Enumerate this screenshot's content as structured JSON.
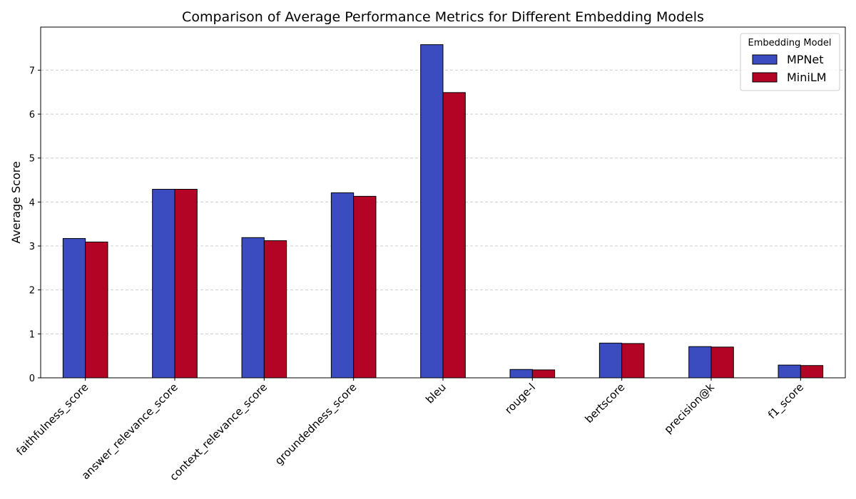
{
  "chart_data": {
    "type": "bar",
    "title": "Comparison of Average Performance Metrics for Different Embedding Models",
    "xlabel": "",
    "ylabel": "Average Score",
    "categories": [
      "faithfulness_score",
      "answer_relevance_score",
      "context_relevance_score",
      "groundedness_score",
      "bleu",
      "rouge-l",
      "bertscore",
      "precision@k",
      "f1_score"
    ],
    "series": [
      {
        "name": "MPNet",
        "color": "#3b4cc0",
        "values": [
          3.17,
          4.29,
          3.19,
          4.21,
          7.58,
          0.19,
          0.79,
          0.71,
          0.29
        ]
      },
      {
        "name": "MiniLM",
        "color": "#b40426",
        "values": [
          3.09,
          4.29,
          3.12,
          4.13,
          6.49,
          0.18,
          0.78,
          0.7,
          0.28
        ]
      }
    ],
    "ylim": [
      0,
      7.98
    ],
    "yticks": [
      0,
      1,
      2,
      3,
      4,
      5,
      6,
      7
    ],
    "grid": "y, dashed",
    "legend": {
      "title": "Embedding Model",
      "placement": "top-right"
    }
  }
}
